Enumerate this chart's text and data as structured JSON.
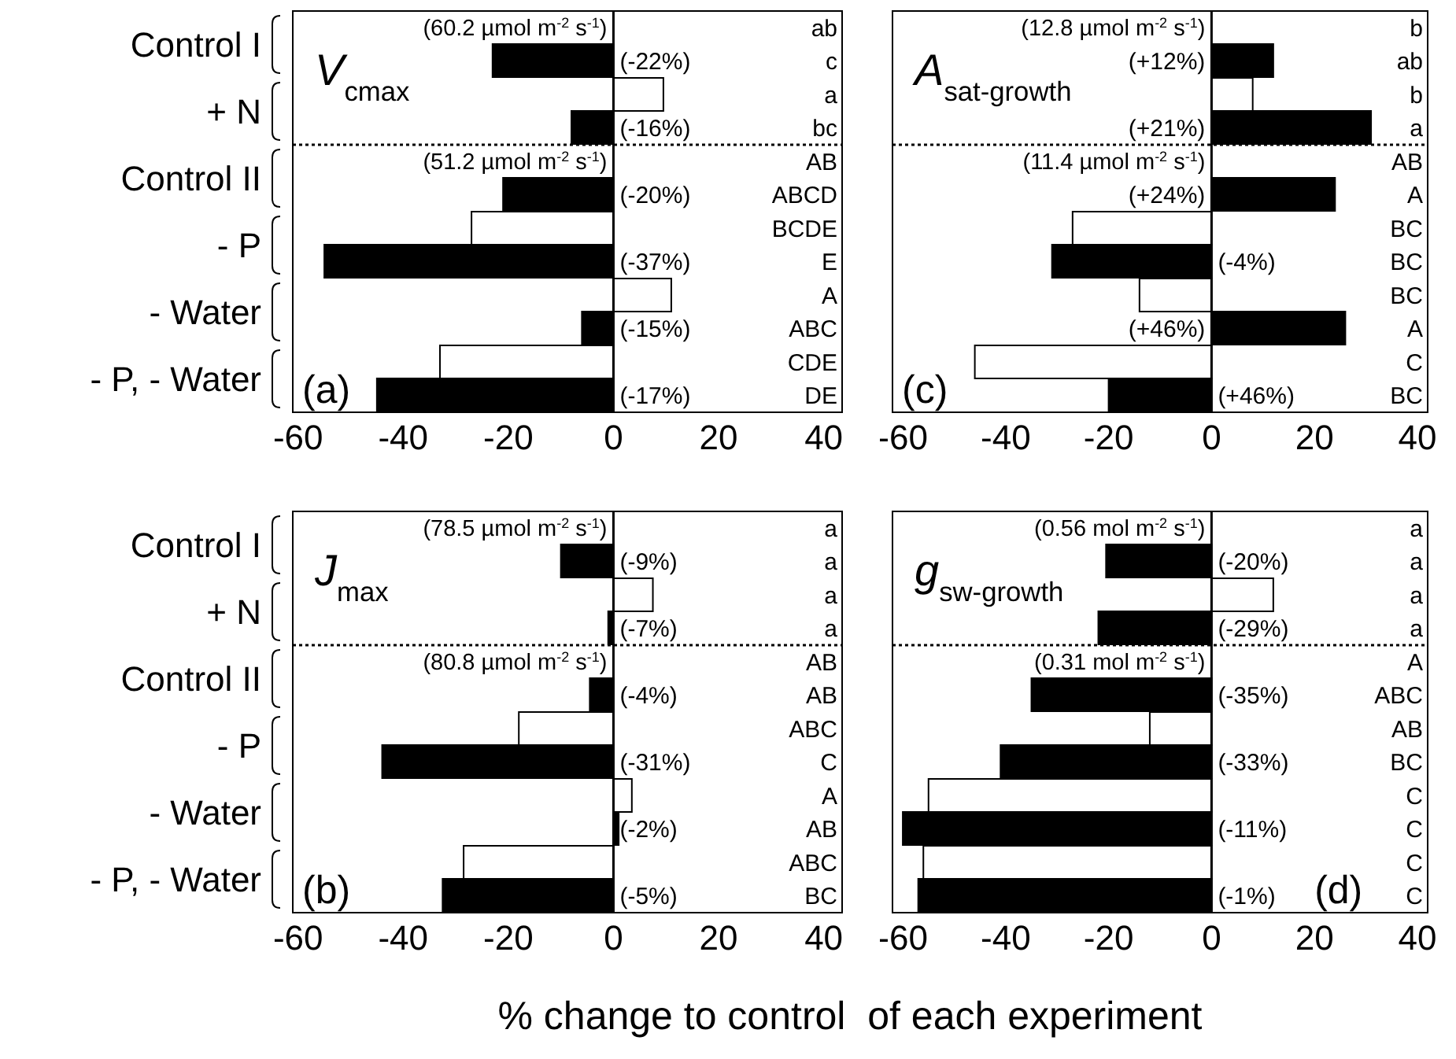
{
  "chart_data": [
    {
      "type": "bar",
      "orientation": "horizontal",
      "title": "V$_{cmax}$",
      "categories": [
        "Control I",
        "+ N",
        "Control II",
        "- P",
        "- Water",
        "- P, - Water"
      ],
      "series": [
        {
          "color": "#ffffff",
          "values": [
            0,
            9.5,
            0,
            -27,
            11,
            -33
          ]
        },
        {
          "color": "#000000",
          "values": [
            -23,
            -8,
            -21,
            -55,
            -6,
            -45
          ]
        }
      ],
      "xlim": [
        -61,
        43.5
      ],
      "xticks": [
        -60,
        -40,
        -20,
        0,
        20,
        40
      ],
      "ref_lines": [
        {
          "axis": "x",
          "value": 0
        },
        {
          "axis": "y",
          "value": "+ N",
          "line_style": "dotted"
        }
      ],
      "annotations": [
        "(a)",
        "(-22%)",
        "(-16%)",
        "(-20%)",
        "(-37%)",
        "(-15%)",
        "(-17%)",
        "(60.2 µmol m$^{-2}$ s$^{-1}$)",
        "(51.2 µmol m$^{-2}$ s$^{-1}$)",
        "ab",
        "c",
        "a",
        "bc",
        "AB",
        "ABCD",
        "BCDE",
        "E",
        "A",
        "ABC",
        "CDE",
        "DE"
      ]
    },
    {
      "type": "bar",
      "orientation": "horizontal",
      "title": "A$_{sat-growth}$",
      "categories": [
        "Control I",
        "+ N",
        "Control II",
        "- P",
        "- Water",
        "- P, - Water"
      ],
      "tick_labels": "x",
      "series": [
        {
          "color": "#ffffff",
          "values": [
            0,
            8,
            0,
            -27,
            -14,
            -46
          ]
        },
        {
          "color": "#000000",
          "values": [
            12,
            31,
            24,
            -31,
            26,
            -20
          ]
        }
      ],
      "xlim": [
        -62,
        42
      ],
      "xticks": [
        -60,
        -40,
        -20,
        0,
        20,
        40
      ],
      "ref_lines": [
        {
          "axis": "x",
          "value": 0
        },
        {
          "axis": "y",
          "value": "+ N",
          "line_style": "dotted"
        }
      ],
      "annotations": [
        "(c)",
        "(+12%)",
        "(+21%)",
        "(+24%)",
        "(-4%)",
        "(+46%)",
        "(+46%)",
        "(12.8 µmol m$^{-2}$ s$^{-1}$)",
        "(11.4 µmol m$^{-2}$ s$^{-1}$)",
        "b",
        "ab",
        "b",
        "a",
        "AB",
        "A",
        "BC",
        "BC",
        "BC",
        "A",
        "C",
        "BC"
      ]
    },
    {
      "type": "bar",
      "orientation": "horizontal",
      "title": "J$_{max}$",
      "categories": [
        "Control I",
        "+ N",
        "Control II",
        "- P",
        "- Water",
        "- P, - Water"
      ],
      "xlabel": "% change to control  of each experiment",
      "series": [
        {
          "color": "#ffffff",
          "values": [
            0,
            7.5,
            0,
            -18,
            3.5,
            -28.5
          ]
        },
        {
          "color": "#000000",
          "values": [
            -10,
            -1,
            -4.5,
            -44,
            1,
            -32.5
          ]
        }
      ],
      "xlim": [
        -61,
        43.5
      ],
      "xticks": [
        -60,
        -40,
        -20,
        0,
        20,
        40
      ],
      "ref_lines": [
        {
          "axis": "x",
          "value": 0
        },
        {
          "axis": "y",
          "value": "+ N",
          "line_style": "dotted"
        }
      ],
      "annotations": [
        "(b)",
        "(-9%)",
        "(-7%)",
        "(-4%)",
        "(-31%)",
        "(-2%)",
        "(-5%)",
        "(78.5 µmol m$^{-2}$ s$^{-1}$)",
        "(80.8 µmol m$^{-2}$ s$^{-1}$)",
        "a",
        "a",
        "a",
        "a",
        "AB",
        "AB",
        "ABC",
        "C",
        "A",
        "AB",
        "ABC",
        "BC"
      ]
    },
    {
      "type": "bar",
      "orientation": "horizontal",
      "title": "g$_{sw-growth}$",
      "categories": [
        "Control I",
        "+ N",
        "Control II",
        "- P",
        "- Water",
        "- P, - Water"
      ],
      "tick_labels": "x",
      "series": [
        {
          "color": "#ffffff",
          "values": [
            0,
            12,
            0,
            -12,
            -55,
            -56
          ]
        },
        {
          "color": "#000000",
          "values": [
            -20.5,
            -22,
            -35,
            -41,
            -60,
            -57
          ]
        }
      ],
      "xlim": [
        -62,
        42
      ],
      "xticks": [
        -60,
        -40,
        -20,
        0,
        20,
        40
      ],
      "ref_lines": [
        {
          "axis": "x",
          "value": 0
        },
        {
          "axis": "y",
          "value": "+ N",
          "line_style": "dotted"
        }
      ],
      "annotations": [
        "(d)",
        "(-20%)",
        "(-29%)",
        "(-35%)",
        "(-33%)",
        "(-11%)",
        "(-1%)",
        "(0.56 mol m$^{-2}$ s$^{-1}$)",
        "(0.31 mol m$^{-2}$ s$^{-1}$)",
        "a",
        "a",
        "a",
        "a",
        "A",
        "ABC",
        "AB",
        "BC",
        "C",
        "C",
        "C",
        "C"
      ]
    }
  ]
}
